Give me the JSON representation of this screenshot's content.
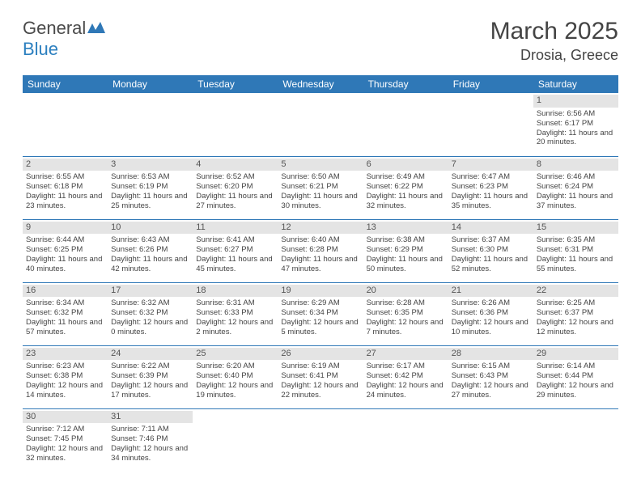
{
  "logo": {
    "text1": "General",
    "text2": "Blue"
  },
  "title": "March 2025",
  "location": "Drosia, Greece",
  "headers": [
    "Sunday",
    "Monday",
    "Tuesday",
    "Wednesday",
    "Thursday",
    "Friday",
    "Saturday"
  ],
  "colors": {
    "header_bg": "#2f78b7",
    "header_fg": "#ffffff",
    "daynum_bg": "#e4e4e4",
    "border": "#2f78b7",
    "text": "#444444"
  },
  "weeks": [
    [
      {
        "n": "",
        "sr": "",
        "ss": "",
        "dl": ""
      },
      {
        "n": "",
        "sr": "",
        "ss": "",
        "dl": ""
      },
      {
        "n": "",
        "sr": "",
        "ss": "",
        "dl": ""
      },
      {
        "n": "",
        "sr": "",
        "ss": "",
        "dl": ""
      },
      {
        "n": "",
        "sr": "",
        "ss": "",
        "dl": ""
      },
      {
        "n": "",
        "sr": "",
        "ss": "",
        "dl": ""
      },
      {
        "n": "1",
        "sr": "Sunrise: 6:56 AM",
        "ss": "Sunset: 6:17 PM",
        "dl": "Daylight: 11 hours and 20 minutes."
      }
    ],
    [
      {
        "n": "2",
        "sr": "Sunrise: 6:55 AM",
        "ss": "Sunset: 6:18 PM",
        "dl": "Daylight: 11 hours and 23 minutes."
      },
      {
        "n": "3",
        "sr": "Sunrise: 6:53 AM",
        "ss": "Sunset: 6:19 PM",
        "dl": "Daylight: 11 hours and 25 minutes."
      },
      {
        "n": "4",
        "sr": "Sunrise: 6:52 AM",
        "ss": "Sunset: 6:20 PM",
        "dl": "Daylight: 11 hours and 27 minutes."
      },
      {
        "n": "5",
        "sr": "Sunrise: 6:50 AM",
        "ss": "Sunset: 6:21 PM",
        "dl": "Daylight: 11 hours and 30 minutes."
      },
      {
        "n": "6",
        "sr": "Sunrise: 6:49 AM",
        "ss": "Sunset: 6:22 PM",
        "dl": "Daylight: 11 hours and 32 minutes."
      },
      {
        "n": "7",
        "sr": "Sunrise: 6:47 AM",
        "ss": "Sunset: 6:23 PM",
        "dl": "Daylight: 11 hours and 35 minutes."
      },
      {
        "n": "8",
        "sr": "Sunrise: 6:46 AM",
        "ss": "Sunset: 6:24 PM",
        "dl": "Daylight: 11 hours and 37 minutes."
      }
    ],
    [
      {
        "n": "9",
        "sr": "Sunrise: 6:44 AM",
        "ss": "Sunset: 6:25 PM",
        "dl": "Daylight: 11 hours and 40 minutes."
      },
      {
        "n": "10",
        "sr": "Sunrise: 6:43 AM",
        "ss": "Sunset: 6:26 PM",
        "dl": "Daylight: 11 hours and 42 minutes."
      },
      {
        "n": "11",
        "sr": "Sunrise: 6:41 AM",
        "ss": "Sunset: 6:27 PM",
        "dl": "Daylight: 11 hours and 45 minutes."
      },
      {
        "n": "12",
        "sr": "Sunrise: 6:40 AM",
        "ss": "Sunset: 6:28 PM",
        "dl": "Daylight: 11 hours and 47 minutes."
      },
      {
        "n": "13",
        "sr": "Sunrise: 6:38 AM",
        "ss": "Sunset: 6:29 PM",
        "dl": "Daylight: 11 hours and 50 minutes."
      },
      {
        "n": "14",
        "sr": "Sunrise: 6:37 AM",
        "ss": "Sunset: 6:30 PM",
        "dl": "Daylight: 11 hours and 52 minutes."
      },
      {
        "n": "15",
        "sr": "Sunrise: 6:35 AM",
        "ss": "Sunset: 6:31 PM",
        "dl": "Daylight: 11 hours and 55 minutes."
      }
    ],
    [
      {
        "n": "16",
        "sr": "Sunrise: 6:34 AM",
        "ss": "Sunset: 6:32 PM",
        "dl": "Daylight: 11 hours and 57 minutes."
      },
      {
        "n": "17",
        "sr": "Sunrise: 6:32 AM",
        "ss": "Sunset: 6:32 PM",
        "dl": "Daylight: 12 hours and 0 minutes."
      },
      {
        "n": "18",
        "sr": "Sunrise: 6:31 AM",
        "ss": "Sunset: 6:33 PM",
        "dl": "Daylight: 12 hours and 2 minutes."
      },
      {
        "n": "19",
        "sr": "Sunrise: 6:29 AM",
        "ss": "Sunset: 6:34 PM",
        "dl": "Daylight: 12 hours and 5 minutes."
      },
      {
        "n": "20",
        "sr": "Sunrise: 6:28 AM",
        "ss": "Sunset: 6:35 PM",
        "dl": "Daylight: 12 hours and 7 minutes."
      },
      {
        "n": "21",
        "sr": "Sunrise: 6:26 AM",
        "ss": "Sunset: 6:36 PM",
        "dl": "Daylight: 12 hours and 10 minutes."
      },
      {
        "n": "22",
        "sr": "Sunrise: 6:25 AM",
        "ss": "Sunset: 6:37 PM",
        "dl": "Daylight: 12 hours and 12 minutes."
      }
    ],
    [
      {
        "n": "23",
        "sr": "Sunrise: 6:23 AM",
        "ss": "Sunset: 6:38 PM",
        "dl": "Daylight: 12 hours and 14 minutes."
      },
      {
        "n": "24",
        "sr": "Sunrise: 6:22 AM",
        "ss": "Sunset: 6:39 PM",
        "dl": "Daylight: 12 hours and 17 minutes."
      },
      {
        "n": "25",
        "sr": "Sunrise: 6:20 AM",
        "ss": "Sunset: 6:40 PM",
        "dl": "Daylight: 12 hours and 19 minutes."
      },
      {
        "n": "26",
        "sr": "Sunrise: 6:19 AM",
        "ss": "Sunset: 6:41 PM",
        "dl": "Daylight: 12 hours and 22 minutes."
      },
      {
        "n": "27",
        "sr": "Sunrise: 6:17 AM",
        "ss": "Sunset: 6:42 PM",
        "dl": "Daylight: 12 hours and 24 minutes."
      },
      {
        "n": "28",
        "sr": "Sunrise: 6:15 AM",
        "ss": "Sunset: 6:43 PM",
        "dl": "Daylight: 12 hours and 27 minutes."
      },
      {
        "n": "29",
        "sr": "Sunrise: 6:14 AM",
        "ss": "Sunset: 6:44 PM",
        "dl": "Daylight: 12 hours and 29 minutes."
      }
    ],
    [
      {
        "n": "30",
        "sr": "Sunrise: 7:12 AM",
        "ss": "Sunset: 7:45 PM",
        "dl": "Daylight: 12 hours and 32 minutes."
      },
      {
        "n": "31",
        "sr": "Sunrise: 7:11 AM",
        "ss": "Sunset: 7:46 PM",
        "dl": "Daylight: 12 hours and 34 minutes."
      },
      {
        "n": "",
        "sr": "",
        "ss": "",
        "dl": ""
      },
      {
        "n": "",
        "sr": "",
        "ss": "",
        "dl": ""
      },
      {
        "n": "",
        "sr": "",
        "ss": "",
        "dl": ""
      },
      {
        "n": "",
        "sr": "",
        "ss": "",
        "dl": ""
      },
      {
        "n": "",
        "sr": "",
        "ss": "",
        "dl": ""
      }
    ]
  ]
}
